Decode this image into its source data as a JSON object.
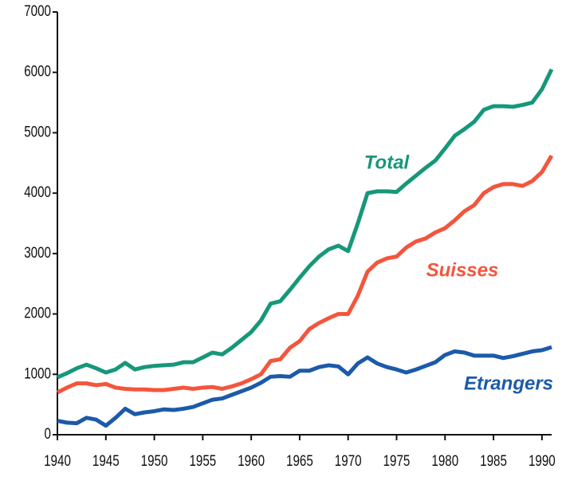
{
  "chart_data": {
    "type": "line",
    "x": [
      1940,
      1941,
      1942,
      1943,
      1944,
      1945,
      1946,
      1947,
      1948,
      1949,
      1950,
      1951,
      1952,
      1953,
      1954,
      1955,
      1956,
      1957,
      1958,
      1959,
      1960,
      1961,
      1962,
      1963,
      1964,
      1965,
      1966,
      1967,
      1968,
      1969,
      1970,
      1971,
      1972,
      1973,
      1974,
      1975,
      1976,
      1977,
      1978,
      1979,
      1980,
      1981,
      1982,
      1983,
      1984,
      1985,
      1986,
      1987,
      1988,
      1989,
      1990,
      1991
    ],
    "series": [
      {
        "name": "Total",
        "color": "#17977a",
        "values": [
          950,
          1020,
          1100,
          1160,
          1100,
          1030,
          1080,
          1190,
          1080,
          1120,
          1140,
          1150,
          1160,
          1200,
          1200,
          1280,
          1360,
          1330,
          1440,
          1570,
          1700,
          1890,
          2170,
          2210,
          2400,
          2600,
          2790,
          2950,
          3070,
          3130,
          3040,
          3500,
          4000,
          4030,
          4030,
          4020,
          4160,
          4290,
          4420,
          4540,
          4740,
          4950,
          5060,
          5180,
          5380,
          5440,
          5440,
          5430,
          5460,
          5500,
          5720,
          6050
        ]
      },
      {
        "name": "Suisses",
        "color": "#f4553d",
        "values": [
          700,
          780,
          850,
          850,
          820,
          840,
          780,
          760,
          750,
          750,
          740,
          740,
          760,
          780,
          760,
          780,
          790,
          760,
          800,
          850,
          920,
          1000,
          1220,
          1250,
          1440,
          1550,
          1750,
          1850,
          1930,
          2000,
          2000,
          2300,
          2700,
          2850,
          2920,
          2950,
          3100,
          3200,
          3250,
          3350,
          3420,
          3550,
          3700,
          3800,
          4000,
          4100,
          4150,
          4150,
          4120,
          4200,
          4350,
          4620
        ]
      },
      {
        "name": "Etrangers",
        "color": "#1c5aa9",
        "values": [
          230,
          200,
          190,
          280,
          250,
          150,
          280,
          430,
          340,
          370,
          390,
          420,
          410,
          430,
          460,
          520,
          580,
          600,
          660,
          720,
          780,
          860,
          960,
          970,
          960,
          1060,
          1060,
          1120,
          1150,
          1130,
          1000,
          1180,
          1280,
          1180,
          1120,
          1080,
          1030,
          1080,
          1140,
          1200,
          1320,
          1380,
          1360,
          1310,
          1310,
          1310,
          1270,
          1300,
          1340,
          1380,
          1400,
          1450
        ]
      }
    ],
    "xlim": [
      1940,
      1991
    ],
    "xticks": [
      1940,
      1945,
      1950,
      1955,
      1960,
      1965,
      1970,
      1975,
      1980,
      1985,
      1990
    ],
    "ylim": [
      0,
      7000
    ],
    "yticks": [
      0,
      1000,
      2000,
      3000,
      4000,
      5000,
      6000,
      7000
    ],
    "grid": false
  }
}
